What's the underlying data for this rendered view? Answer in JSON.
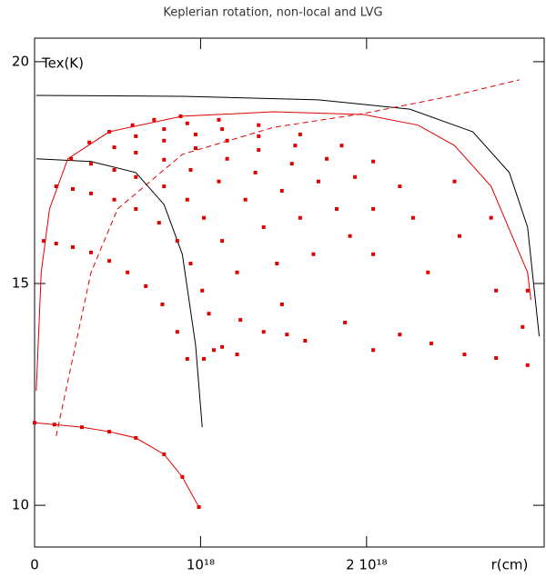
{
  "chart_data": {
    "type": "line",
    "title": "Keplerian rotation, non-local and LVG",
    "xlabel": "r(cm)",
    "ylabel": "Tex(K)",
    "xlim": [
      0,
      3.07e+18
    ],
    "ylim": [
      9.06,
      20.53
    ],
    "xticks": [
      0,
      {
        "value": 1e+18,
        "label": "10¹⁸"
      },
      {
        "value": 2e+18,
        "label": "2 10¹⁸"
      }
    ],
    "yticks": [
      10,
      15,
      20
    ],
    "series": [
      {
        "kind": "line",
        "style": "solid",
        "color": "#000000",
        "x": [
          1e+16,
          8.9e+17,
          1.71e+18,
          2.26e+18,
          2.64e+18,
          2.86e+18,
          2.97e+18,
          3.04e+18
        ],
        "values": [
          19.24,
          19.22,
          19.14,
          18.93,
          18.42,
          17.5,
          16.27,
          13.81
        ]
      },
      {
        "kind": "line",
        "style": "solid",
        "color": "#000000",
        "x": [
          1e+16,
          3.4e+17,
          6.1e+17,
          7.8e+17,
          8.9e+17,
          9.7e+17,
          1.01e+18
        ],
        "values": [
          17.81,
          17.75,
          17.5,
          16.78,
          15.66,
          13.61,
          11.76
        ]
      },
      {
        "kind": "line",
        "style": "dashed",
        "color": "#e00000",
        "x": [
          1.3e+17,
          3.4e+17,
          5e+17,
          8.9e+17,
          1.44e+18,
          1.98e+18,
          2.53e+18,
          2.92e+18
        ],
        "values": [
          11.56,
          15.25,
          16.68,
          17.91,
          18.52,
          18.83,
          19.24,
          19.59
        ]
      },
      {
        "kind": "line",
        "style": "solid",
        "color": "#e00000",
        "x": [
          1e+16,
          4e+16,
          9e+16,
          2e+17,
          4.5e+17,
          8.9e+17,
          1.44e+18,
          1.98e+18,
          2.31e+18,
          2.53e+18,
          2.75e+18,
          2.97e+18,
          2.99e+18
        ],
        "values": [
          12.58,
          15.25,
          16.68,
          17.81,
          18.42,
          18.77,
          18.87,
          18.81,
          18.57,
          18.11,
          17.19,
          15.25,
          14.63
        ]
      },
      {
        "kind": "line",
        "style": "solid",
        "color": "#e00000",
        "markers": true,
        "x": [
          0,
          1.2e+17,
          2.85e+17,
          4.5e+17,
          6.1e+17,
          7.8e+17,
          8.9e+17,
          9.9e+17
        ],
        "values": [
          11.86,
          11.82,
          11.76,
          11.66,
          11.52,
          11.15,
          10.64,
          9.96
        ]
      },
      {
        "kind": "scatter",
        "color": "#e00000",
        "x": [
          5.5e+16,
          1.3e+17,
          2.3e+17,
          3.4e+17,
          4.5e+17,
          5.6e+17,
          6.7e+17,
          7.7e+17,
          8.6e+17,
          9.2e+17,
          1.3e+17,
          2.3e+17,
          3.4e+17,
          4.8e+17,
          6.1e+17,
          7.5e+17,
          8.6e+17,
          9.4e+17,
          1.01e+18,
          1.05e+18,
          2.2e+17,
          3.4e+17,
          4.8e+17,
          6.1e+17,
          7.8e+17,
          9.2e+17,
          1.02e+18,
          1.13e+18,
          1.22e+18,
          3.3e+17,
          4.8e+17,
          6.1e+17,
          7.8e+17,
          9.4e+17,
          1.11e+18,
          1.27e+18,
          1.38e+18,
          1.46e+18,
          1.49e+18,
          4.5e+17,
          6.1e+17,
          7.8e+17,
          9.7e+17,
          1.16e+18,
          1.33e+18,
          1.49e+18,
          1.6e+18,
          1.68e+18,
          5.9e+17,
          7.8e+17,
          9.7e+17,
          1.16e+18,
          1.35e+18,
          1.55e+18,
          1.71e+18,
          1.82e+18,
          1.9e+18,
          7.2e+17,
          9.2e+17,
          1.13e+18,
          1.35e+18,
          1.57e+18,
          1.76e+18,
          1.93e+18,
          2.04e+18,
          2.04e+18,
          8.8e+17,
          1.11e+18,
          1.35e+18,
          1.6e+18,
          1.85e+18,
          2.04e+18,
          2.2e+18,
          2.28e+18,
          2.37e+18,
          2.53e+18,
          2.56e+18,
          2.75e+18,
          2.78e+18,
          2.94e+18,
          2.97e+18,
          1.02e+18,
          1.08e+18,
          1.13e+18,
          1.22e+18,
          1.24e+18,
          1.38e+18,
          1.52e+18,
          1.63e+18,
          1.87e+18,
          2.04e+18,
          2.2e+18,
          2.39e+18,
          2.59e+18,
          2.78e+18,
          2.97e+18
        ],
        "values": [
          15.96,
          15.9,
          15.82,
          15.7,
          15.51,
          15.25,
          14.94,
          14.53,
          13.91,
          13.3,
          17.19,
          17.13,
          17.03,
          16.89,
          16.68,
          16.37,
          15.96,
          15.45,
          14.84,
          14.32,
          17.81,
          17.7,
          17.56,
          17.4,
          17.19,
          16.89,
          16.48,
          15.96,
          15.25,
          18.18,
          18.07,
          17.95,
          17.79,
          17.56,
          17.3,
          16.89,
          16.27,
          15.45,
          14.53,
          18.42,
          18.32,
          18.22,
          18.05,
          17.81,
          17.5,
          17.09,
          16.48,
          15.66,
          18.57,
          18.48,
          18.36,
          18.22,
          18.01,
          17.7,
          17.3,
          16.68,
          16.07,
          18.69,
          18.61,
          18.48,
          18.32,
          18.11,
          17.81,
          17.4,
          16.68,
          15.66,
          18.77,
          18.69,
          18.57,
          18.36,
          18.11,
          17.75,
          17.19,
          16.48,
          15.25,
          17.3,
          16.07,
          16.48,
          14.84,
          14.02,
          14.84,
          13.3,
          13.5,
          13.57,
          13.4,
          14.18,
          13.91,
          13.85,
          13.71,
          14.12,
          13.5,
          13.85,
          13.65,
          13.4,
          13.32,
          13.16
        ]
      }
    ]
  }
}
